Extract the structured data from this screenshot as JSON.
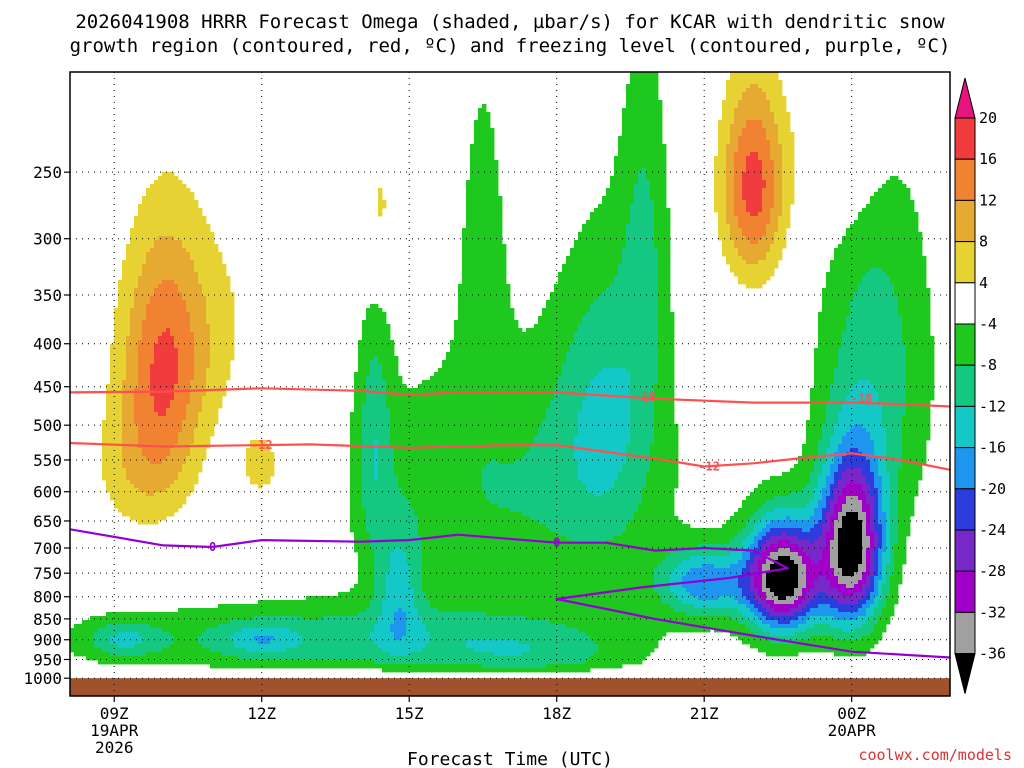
{
  "chart_data": {
    "type": "heatmap",
    "title_line1": "2026041908 HRRR Forecast Omega (shaded, µbar/s) for KCAR with dendritic snow",
    "title_line2": "growth region (contoured, red, ºC) and freezing level (contoured, purple, ºC)",
    "xlabel": "Forecast Time (UTC)",
    "credit": "coolwx.com/models",
    "x_ticks": [
      {
        "time": 9,
        "label": "09Z",
        "sub1": "19APR",
        "sub2": "2026"
      },
      {
        "time": 12,
        "label": "12Z",
        "sub1": "",
        "sub2": ""
      },
      {
        "time": 15,
        "label": "15Z",
        "sub1": "",
        "sub2": ""
      },
      {
        "time": 18,
        "label": "18Z",
        "sub1": "",
        "sub2": ""
      },
      {
        "time": 21,
        "label": "21Z",
        "sub1": "",
        "sub2": ""
      },
      {
        "time": 24,
        "label": "00Z",
        "sub1": "20APR",
        "sub2": ""
      }
    ],
    "xlim": [
      8.1,
      26.0
    ],
    "y_axis": "pressure (hPa), log scale, inverted",
    "ylim": [
      1050,
      190
    ],
    "y_ticks": [
      250,
      300,
      350,
      400,
      450,
      500,
      550,
      600,
      650,
      700,
      750,
      800,
      850,
      900,
      950,
      1000
    ],
    "grid": true,
    "colorbar": {
      "levels": [
        20,
        16,
        12,
        8,
        4,
        -4,
        -8,
        -12,
        -16,
        -20,
        -24,
        -28,
        -32,
        -36
      ],
      "bins": [
        {
          "range": [
            20,
            999
          ],
          "color": "#e8147e"
        },
        {
          "range": [
            16,
            20
          ],
          "color": "#f03c3c"
        },
        {
          "range": [
            12,
            16
          ],
          "color": "#f08232"
        },
        {
          "range": [
            8,
            12
          ],
          "color": "#e6aa32"
        },
        {
          "range": [
            4,
            8
          ],
          "color": "#e6d232"
        },
        {
          "range": [
            -4,
            4
          ],
          "color": "#ffffff"
        },
        {
          "range": [
            -8,
            -4
          ],
          "color": "#1ec81e"
        },
        {
          "range": [
            -12,
            -8
          ],
          "color": "#14c882"
        },
        {
          "range": [
            -16,
            -12
          ],
          "color": "#14c8c8"
        },
        {
          "range": [
            -20,
            -16
          ],
          "color": "#1e96f0"
        },
        {
          "range": [
            -24,
            -20
          ],
          "color": "#2d3cdc"
        },
        {
          "range": [
            -28,
            -24
          ],
          "color": "#7828c8"
        },
        {
          "range": [
            -32,
            -28
          ],
          "color": "#a000c8"
        },
        {
          "range": [
            -36,
            -32
          ],
          "color": "#a0a0a0"
        },
        {
          "range": [
            -999,
            -36
          ],
          "color": "#000000"
        }
      ]
    },
    "ground": {
      "top_hPa": 1000,
      "color": "#a0522d"
    },
    "omega_features": [
      {
        "name": "ascent-core-1",
        "t": 22.6,
        "p": 780,
        "peak": -40
      },
      {
        "name": "ascent-core-2",
        "t": 24.0,
        "p": 700,
        "peak": -40
      },
      {
        "name": "subsidence-1",
        "t": 10.0,
        "p": 420,
        "peak": 14
      },
      {
        "name": "subsidence-2",
        "t": 22.0,
        "p": 260,
        "peak": 18
      }
    ],
    "contours": [
      {
        "name": "dgz-minus18",
        "label": "-18",
        "color": "#ff5050",
        "label_at": [
          [
            19.8,
            463
          ],
          [
            24.2,
            465
          ]
        ],
        "points": [
          [
            8.1,
            457
          ],
          [
            10,
            456
          ],
          [
            12,
            452
          ],
          [
            14,
            455
          ],
          [
            15,
            460
          ],
          [
            16,
            457
          ],
          [
            18,
            457
          ],
          [
            20,
            465
          ],
          [
            22,
            470
          ],
          [
            24,
            470
          ],
          [
            25,
            472
          ],
          [
            26,
            475
          ]
        ]
      },
      {
        "name": "dgz-minus12",
        "label": "-12",
        "color": "#ff5050",
        "label_at": [
          [
            12.0,
            528
          ],
          [
            21.1,
            560
          ]
        ],
        "points": [
          [
            8.1,
            525
          ],
          [
            10,
            530
          ],
          [
            12,
            528
          ],
          [
            13,
            527
          ],
          [
            15,
            532
          ],
          [
            17,
            528
          ],
          [
            18,
            528
          ],
          [
            20,
            548
          ],
          [
            21,
            560
          ],
          [
            22,
            555
          ],
          [
            23,
            547
          ],
          [
            24,
            540
          ],
          [
            25,
            550
          ],
          [
            26,
            565
          ]
        ]
      },
      {
        "name": "freezing-level-0",
        "label": "0",
        "color": "#9400d3",
        "label_at": [
          [
            11.0,
            698
          ],
          [
            18.0,
            690
          ]
        ],
        "points": [
          [
            8.1,
            665
          ],
          [
            10,
            695
          ],
          [
            11,
            698
          ],
          [
            12,
            685
          ],
          [
            14,
            688
          ],
          [
            15,
            685
          ],
          [
            16,
            675
          ],
          [
            18,
            690
          ],
          [
            19,
            690
          ],
          [
            20,
            705
          ],
          [
            21,
            700
          ],
          [
            22,
            705
          ],
          [
            22.7,
            740
          ],
          [
            21.5,
            760
          ],
          [
            19.7,
            780
          ],
          [
            18.0,
            805
          ],
          [
            20,
            850
          ],
          [
            22,
            890
          ],
          [
            24,
            930
          ],
          [
            26,
            945
          ]
        ]
      }
    ]
  }
}
